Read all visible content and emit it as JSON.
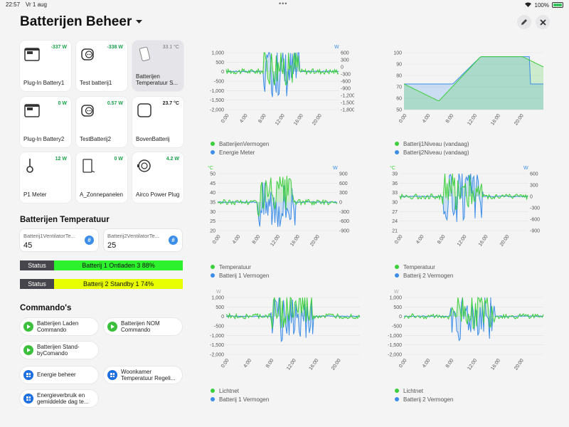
{
  "statusbar": {
    "time": "22:57",
    "date": "Vr 1 aug",
    "battery": "100%"
  },
  "header": {
    "title": "Batterijen Beheer"
  },
  "tiles": [
    {
      "name": "Plug-In Battery1",
      "value": "-337 W",
      "icon": "battery-device-icon"
    },
    {
      "name": "Test batterij1",
      "value": "-338 W",
      "icon": "smart-plug-icon"
    },
    {
      "name": "Batterijen Temperatuur S...",
      "value": "33.1 °C",
      "icon": "sensor-icon"
    },
    {
      "name": "Plug-In Battery2",
      "value": "0 W",
      "icon": "battery-device-icon"
    },
    {
      "name": "TestBatterij2",
      "value": "0.57 W",
      "icon": "smart-plug-icon"
    },
    {
      "name": "BovenBatterij",
      "value": "23.7 °C",
      "icon": "device-box-icon"
    },
    {
      "name": "P1 Meter",
      "value": "12 W",
      "icon": "p1-meter-icon"
    },
    {
      "name": "A_Zonnepanelen",
      "value": "0 W",
      "icon": "inverter-icon"
    },
    {
      "name": "Airco Power Plug",
      "value": "4.2 W",
      "icon": "power-plug-icon"
    }
  ],
  "temperature": {
    "title": "Batterijen Temperatuur",
    "fields": [
      {
        "label": "Batterij1VentilatorTe...",
        "value": "45"
      },
      {
        "label": "Batterij2VentilatorTe...",
        "value": "25"
      }
    ]
  },
  "status": [
    {
      "key": "Status",
      "value": "Batterij 1 Ontladen 3 88%",
      "color": "#2ef12e"
    },
    {
      "key": "Status",
      "value": "Batterij 2 Standby 1 74%",
      "color": "#e7ff00"
    }
  ],
  "commands": {
    "title": "Commando's",
    "items": [
      {
        "label": "Batterijen Laden Commando",
        "type": "play"
      },
      {
        "label": "Batterijen NOM Commando",
        "type": "play"
      },
      {
        "label": "Batterijen Stand-byComando",
        "type": "play"
      },
      {
        "label": "Energie beheer",
        "type": "grid"
      },
      {
        "label": "Woonkamer Temperatuur Regeli...",
        "type": "grid"
      },
      {
        "label": "Energieverbruik en gemiddelde dag te...",
        "type": "grid"
      }
    ]
  },
  "colors": {
    "green": "#3ccf3c",
    "blue": "#3b8de8",
    "teal": "#27b1a6"
  },
  "chart_data": [
    {
      "type": "line",
      "title": "",
      "x_ticks": [
        "0:00",
        "4:00",
        "8:00",
        "12:00",
        "16:00",
        "20:00"
      ],
      "left_axis": {
        "unit": "",
        "ticks": [
          "1,000",
          "500",
          "0",
          "-500",
          "-1,000",
          "-1,500",
          "-2,000"
        ],
        "range": [
          -2000,
          1000
        ]
      },
      "right_axis": {
        "unit": "W",
        "ticks": [
          "600",
          "300",
          "0",
          "-300",
          "-600",
          "-900",
          "-1,200",
          "-1,500",
          "-1,800"
        ],
        "range": [
          -1800,
          600
        ]
      },
      "series": [
        {
          "name": "BatterijenVermogen",
          "color": "green"
        },
        {
          "name": "Energie Meter",
          "color": "blue"
        }
      ]
    },
    {
      "type": "area",
      "title": "",
      "x_ticks": [
        "0:00",
        "4:00",
        "8:00",
        "12:00",
        "16:00",
        "20:00"
      ],
      "left_axis": {
        "unit": "",
        "ticks": [
          "100",
          "90",
          "80",
          "70",
          "60",
          "50"
        ],
        "range": [
          50,
          100
        ]
      },
      "series": [
        {
          "name": "Batterij1Niveau (vandaag)",
          "color": "green"
        },
        {
          "name": "Batterij2Niveau (vandaag)",
          "color": "blue"
        }
      ]
    },
    {
      "type": "line",
      "title": "",
      "x_ticks": [
        "0:00",
        "4:00",
        "8:00",
        "12:00",
        "16:00",
        "20:00"
      ],
      "left_axis": {
        "unit": "°C",
        "ticks": [
          "50",
          "45",
          "40",
          "35",
          "30",
          "25",
          "20"
        ],
        "range": [
          20,
          50
        ]
      },
      "right_axis": {
        "unit": "W",
        "ticks": [
          "900",
          "600",
          "300",
          "0",
          "-300",
          "-600",
          "-900"
        ],
        "range": [
          -900,
          900
        ]
      },
      "series": [
        {
          "name": "Temperatuur",
          "color": "green"
        },
        {
          "name": "Batterij 1 Vermogen",
          "color": "blue"
        }
      ]
    },
    {
      "type": "line",
      "title": "",
      "x_ticks": [
        "0:00",
        "4:00",
        "8:00",
        "12:00",
        "16:00",
        "20:00"
      ],
      "left_axis": {
        "unit": "°C",
        "ticks": [
          "39",
          "36",
          "33",
          "30",
          "27",
          "24",
          "21"
        ],
        "range": [
          21,
          39
        ]
      },
      "right_axis": {
        "unit": "W",
        "ticks": [
          "600",
          "300",
          "0",
          "-300",
          "-600",
          "-900"
        ],
        "range": [
          -900,
          600
        ]
      },
      "series": [
        {
          "name": "Temperatuur",
          "color": "green"
        },
        {
          "name": "Batterij 2 Vermogen",
          "color": "blue"
        }
      ]
    },
    {
      "type": "line",
      "title": "",
      "x_ticks": [
        "0:00",
        "4:00",
        "8:00",
        "12:00",
        "16:00",
        "20:00"
      ],
      "left_axis": {
        "unit": "W",
        "ticks": [
          "1,000",
          "500",
          "0",
          "-500",
          "-1,000",
          "-1,500",
          "-2,000"
        ],
        "range": [
          -2000,
          1000
        ]
      },
      "series": [
        {
          "name": "Lichtnet",
          "color": "green"
        },
        {
          "name": "Batterij 1 Vermogen",
          "color": "blue"
        }
      ]
    },
    {
      "type": "line",
      "title": "",
      "x_ticks": [
        "0:00",
        "4:00",
        "8:00",
        "12:00",
        "16:00",
        "20:00"
      ],
      "left_axis": {
        "unit": "W",
        "ticks": [
          "1,000",
          "500",
          "0",
          "-500",
          "-1,000",
          "-1,500",
          "-2,000"
        ],
        "range": [
          -2000,
          1000
        ]
      },
      "series": [
        {
          "name": "Lichtnet",
          "color": "green"
        },
        {
          "name": "Batterij 2 Vermogen",
          "color": "blue"
        }
      ]
    }
  ]
}
